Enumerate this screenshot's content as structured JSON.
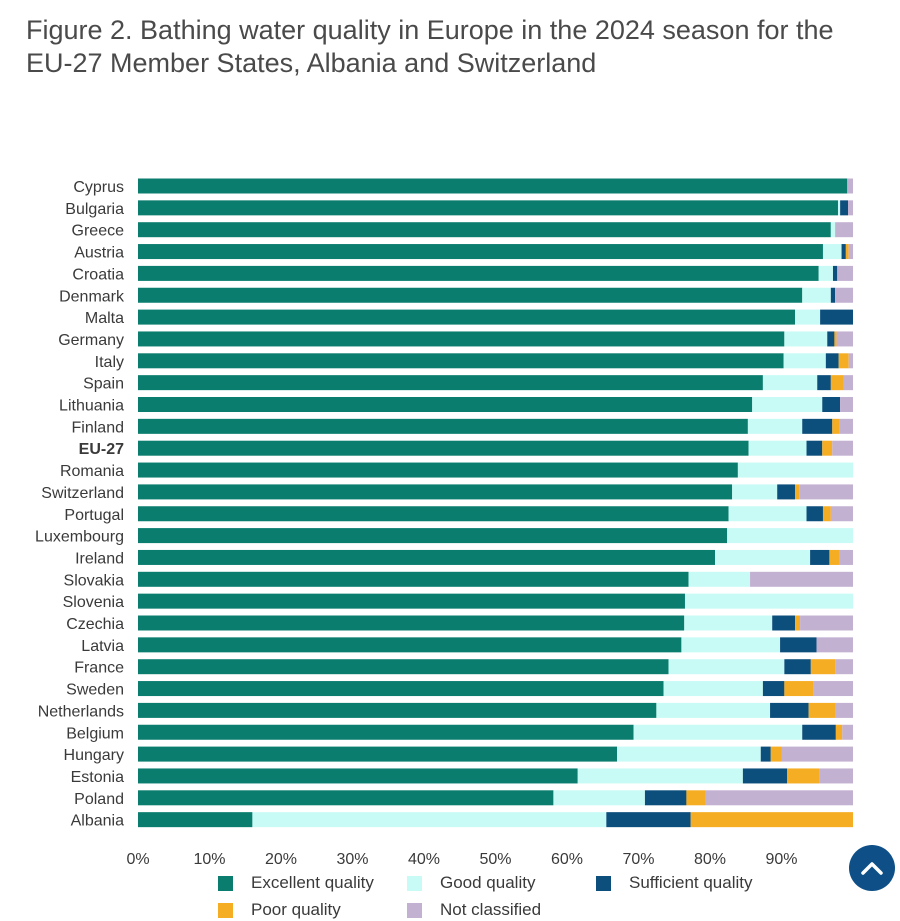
{
  "title": "Figure 2. Bathing water quality in Europe in the 2024 season for the EU-27 Member States, Albania and Switzerland",
  "scroll_top_icon": "chevron-up-icon",
  "colors": {
    "excellent": "#0b7d6f",
    "good": "#c8fbf6",
    "sufficient": "#0d4f7c",
    "poor": "#f5ad24",
    "not_classified": "#c3b1d2"
  },
  "chart_data": {
    "type": "bar",
    "orientation": "horizontal",
    "stacked": true,
    "title": "Figure 2. Bathing water quality in Europe in the 2024 season for the EU-27 Member States, Albania and Switzerland",
    "xlabel": "",
    "ylabel": "",
    "xlim": [
      0,
      100
    ],
    "x_ticks": [
      "0%",
      "10%",
      "20%",
      "30%",
      "40%",
      "50%",
      "60%",
      "70%",
      "80%",
      "90%"
    ],
    "grid": false,
    "legend_position": "bottom",
    "bold_categories": [
      "EU-27"
    ],
    "categories": [
      "Cyprus",
      "Bulgaria",
      "Greece",
      "Austria",
      "Croatia",
      "Denmark",
      "Malta",
      "Germany",
      "Italy",
      "Spain",
      "Lithuania",
      "Finland",
      "EU-27",
      "Romania",
      "Switzerland",
      "Portugal",
      "Luxembourg",
      "Ireland",
      "Slovakia",
      "Slovenia",
      "Czechia",
      "Latvia",
      "France",
      "Sweden",
      "Netherlands",
      "Belgium",
      "Hungary",
      "Estonia",
      "Poland",
      "Albania"
    ],
    "series": [
      {
        "name": "Excellent quality",
        "key": "excellent",
        "values": [
          99.2,
          97.9,
          96.9,
          95.8,
          95.2,
          92.9,
          91.9,
          90.4,
          90.3,
          87.4,
          85.9,
          85.3,
          85.4,
          83.9,
          83.1,
          82.6,
          82.4,
          80.7,
          77.0,
          76.5,
          76.4,
          76.0,
          74.2,
          73.5,
          72.5,
          69.3,
          67.0,
          61.5,
          58.1,
          16.0
        ]
      },
      {
        "name": "Good quality",
        "key": "good",
        "values": [
          0,
          0.3,
          0.6,
          2.6,
          2.0,
          4.0,
          3.5,
          6.0,
          5.9,
          7.6,
          9.8,
          7.6,
          8.1,
          16.1,
          6.3,
          10.9,
          17.6,
          13.3,
          8.6,
          23.5,
          12.3,
          13.8,
          16.2,
          13.9,
          15.9,
          23.6,
          20.1,
          23.1,
          12.8,
          49.5
        ]
      },
      {
        "name": "Sufficient quality",
        "key": "sufficient",
        "values": [
          0,
          1.1,
          0,
          0.6,
          0.6,
          0.6,
          4.6,
          1.0,
          1.8,
          1.9,
          2.5,
          4.2,
          2.2,
          0,
          2.5,
          2.3,
          0,
          2.7,
          0,
          0,
          3.2,
          5.1,
          3.7,
          3.0,
          5.4,
          4.7,
          1.4,
          6.2,
          5.8,
          11.8
        ]
      },
      {
        "name": "Poor quality",
        "key": "poor",
        "values": [
          0,
          0,
          0,
          0.4,
          0,
          0,
          0,
          0.3,
          1.4,
          1.7,
          0,
          1.0,
          1.4,
          0,
          0.6,
          1.1,
          0,
          1.4,
          0,
          0,
          0.7,
          0,
          3.4,
          4.1,
          3.8,
          0.9,
          1.5,
          4.5,
          2.6,
          22.7
        ]
      },
      {
        "name": "Not classified",
        "key": "not_classified",
        "values": [
          0.8,
          0.7,
          2.5,
          0.6,
          2.2,
          2.5,
          0,
          2.3,
          0.6,
          1.4,
          1.8,
          1.9,
          2.9,
          0,
          7.5,
          3.1,
          0,
          1.9,
          14.4,
          0,
          7.4,
          5.1,
          2.5,
          5.5,
          2.4,
          1.5,
          10.0,
          4.7,
          20.7,
          0
        ]
      }
    ]
  }
}
